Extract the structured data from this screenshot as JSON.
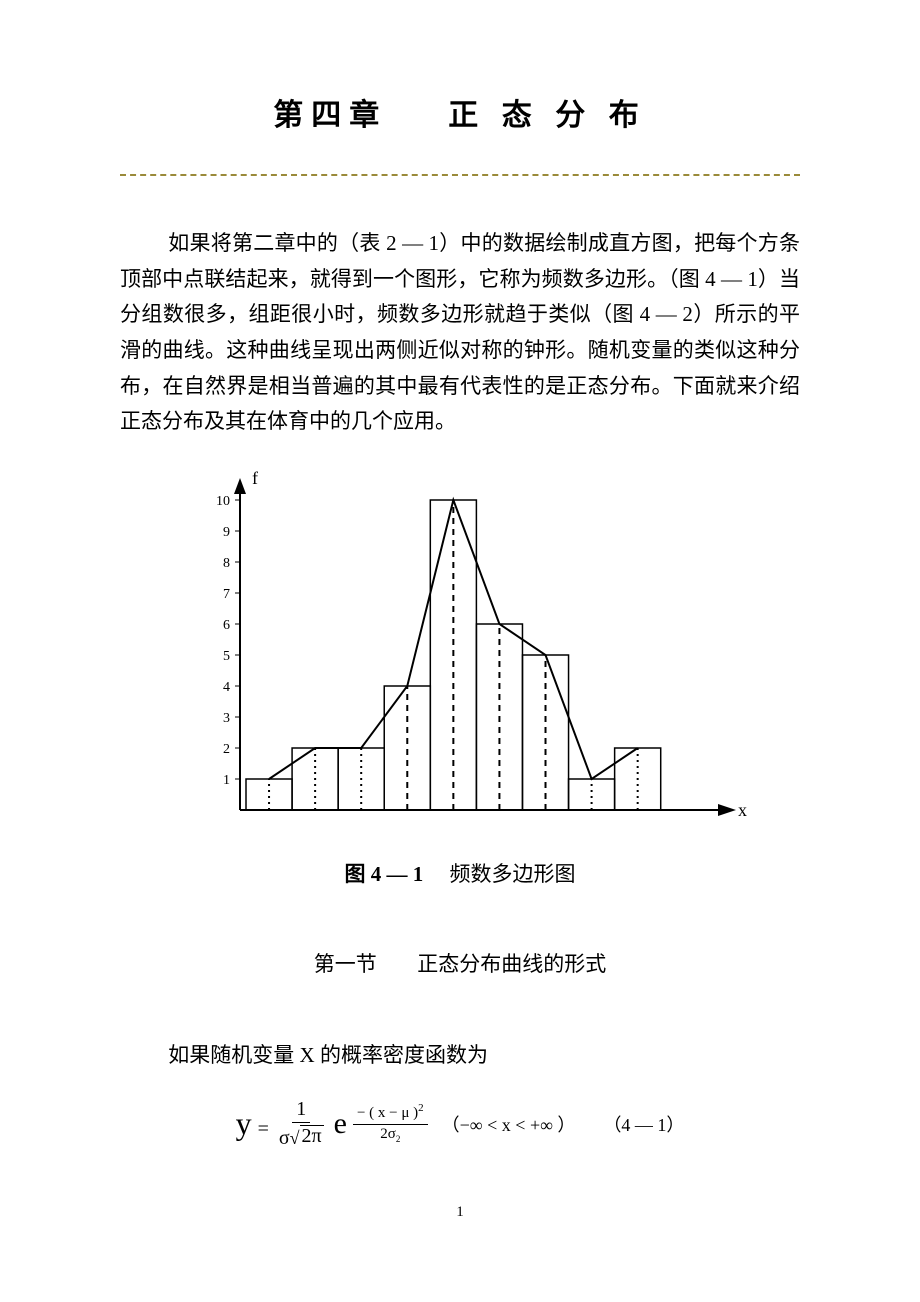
{
  "chapter": {
    "title_left": "第四章",
    "title_right": "正 态 分 布"
  },
  "divider_color": "#9a8a3a",
  "paragraph1": "如果将第二章中的（表 2 — 1）中的数据绘制成直方图，把每个方条顶部中点联结起来，就得到一个图形，它称为频数多边形。（图 4 — 1）当分组数很多，组距很小时，频数多边形就趋于类似（图 4 — 2）所示的平滑的曲线。这种曲线呈现出两侧近似对称的钟形。随机变量的类似这种分布，在自然界是相当普遍的其中最有代表性的是正态分布。下面就来介绍正态分布及其在体育中的几个应用。",
  "figure4_1": {
    "type": "histogram_with_polygon",
    "ylabel": "f",
    "xlabel": "x",
    "ytick_values": [
      1,
      2,
      3,
      4,
      5,
      6,
      7,
      8,
      9,
      10
    ],
    "ylim": [
      0,
      10
    ],
    "bar_heights": [
      1,
      2,
      2,
      4,
      10,
      6,
      5,
      1,
      2
    ],
    "bar_count": 9,
    "bar_outline_color": "#000000",
    "bar_fill_color": "none",
    "polygon_color": "#000000",
    "polygon_linewidth": 2,
    "midpoint_dash_color": "#000000",
    "axis_color": "#000000",
    "background_color": "#ffffff",
    "tick_fontsize": 14,
    "label_fontsize": 18,
    "caption_bold": "图 4 — 1",
    "caption_rest": "频数多边形图"
  },
  "section1": {
    "label": "第一节",
    "title": "正态分布曲线的形式"
  },
  "lead2": "如果随机变量 X 的概率密度函数为",
  "formula": {
    "lhs": "y",
    "frac1_num": "1",
    "frac1_den_sigma": "σ",
    "frac1_den_rad": "2π",
    "e": "e",
    "exp_num": "− ( x − μ )",
    "exp_num_sup": "2",
    "exp_den": "2σ",
    "exp_den_sup": "2",
    "range": "（−∞ < x < +∞ ）",
    "eqnum": "（4 — 1）"
  },
  "page_number": "1"
}
